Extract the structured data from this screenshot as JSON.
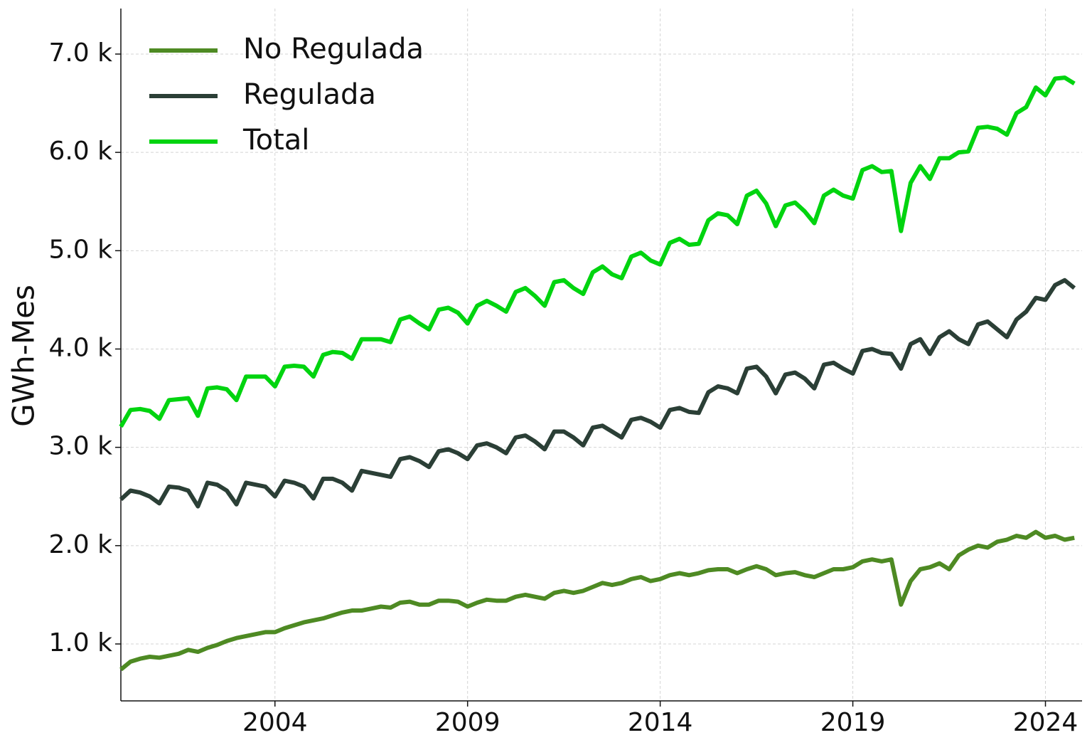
{
  "chart_data": {
    "type": "line",
    "y_label": "GWh-Mes",
    "x": [
      2000,
      2000.25,
      2000.5,
      2000.75,
      2001,
      2001.25,
      2001.5,
      2001.75,
      2002,
      2002.25,
      2002.5,
      2002.75,
      2003,
      2003.25,
      2003.5,
      2003.75,
      2004,
      2004.25,
      2004.5,
      2004.75,
      2005,
      2005.25,
      2005.5,
      2005.75,
      2006,
      2006.25,
      2006.5,
      2006.75,
      2007,
      2007.25,
      2007.5,
      2007.75,
      2008,
      2008.25,
      2008.5,
      2008.75,
      2009,
      2009.25,
      2009.5,
      2009.75,
      2010,
      2010.25,
      2010.5,
      2010.75,
      2011,
      2011.25,
      2011.5,
      2011.75,
      2012,
      2012.25,
      2012.5,
      2012.75,
      2013,
      2013.25,
      2013.5,
      2013.75,
      2014,
      2014.25,
      2014.5,
      2014.75,
      2015,
      2015.25,
      2015.5,
      2015.75,
      2016,
      2016.25,
      2016.5,
      2016.75,
      2017,
      2017.25,
      2017.5,
      2017.75,
      2018,
      2018.25,
      2018.5,
      2018.75,
      2019,
      2019.25,
      2019.5,
      2019.75,
      2020,
      2020.25,
      2020.5,
      2020.75,
      2021,
      2021.25,
      2021.5,
      2021.75,
      2022,
      2022.25,
      2022.5,
      2022.75,
      2023,
      2023.25,
      2023.5,
      2023.75,
      2024,
      2024.25,
      2024.5,
      2024.75
    ],
    "series": [
      {
        "name": "No Regulada",
        "color": "#4e8a23",
        "values": [
          740,
          820,
          850,
          870,
          860,
          880,
          900,
          940,
          920,
          960,
          990,
          1030,
          1060,
          1080,
          1100,
          1120,
          1120,
          1160,
          1190,
          1220,
          1240,
          1260,
          1290,
          1320,
          1340,
          1340,
          1360,
          1380,
          1370,
          1420,
          1430,
          1400,
          1400,
          1440,
          1440,
          1430,
          1380,
          1420,
          1450,
          1440,
          1440,
          1480,
          1500,
          1480,
          1460,
          1520,
          1540,
          1520,
          1540,
          1580,
          1620,
          1600,
          1620,
          1660,
          1680,
          1640,
          1660,
          1700,
          1720,
          1700,
          1720,
          1750,
          1760,
          1760,
          1720,
          1760,
          1790,
          1760,
          1700,
          1720,
          1730,
          1700,
          1680,
          1720,
          1760,
          1760,
          1780,
          1840,
          1860,
          1840,
          1860,
          1400,
          1640,
          1760,
          1780,
          1820,
          1760,
          1900,
          1960,
          2000,
          1980,
          2040,
          2060,
          2100,
          2080,
          2140,
          2080,
          2100,
          2060,
          2080
        ]
      },
      {
        "name": "Regulada",
        "color": "#2b3f36",
        "values": [
          2470,
          2560,
          2540,
          2500,
          2430,
          2600,
          2590,
          2560,
          2400,
          2640,
          2620,
          2560,
          2420,
          2640,
          2620,
          2600,
          2500,
          2660,
          2640,
          2600,
          2480,
          2680,
          2680,
          2640,
          2560,
          2760,
          2740,
          2720,
          2700,
          2880,
          2900,
          2860,
          2800,
          2960,
          2980,
          2940,
          2880,
          3020,
          3040,
          3000,
          2940,
          3100,
          3120,
          3060,
          2980,
          3160,
          3160,
          3100,
          3020,
          3200,
          3220,
          3160,
          3100,
          3280,
          3300,
          3260,
          3200,
          3380,
          3400,
          3360,
          3350,
          3560,
          3620,
          3600,
          3550,
          3800,
          3820,
          3720,
          3550,
          3740,
          3760,
          3700,
          3600,
          3840,
          3860,
          3800,
          3750,
          3980,
          4000,
          3960,
          3950,
          3800,
          4050,
          4100,
          3950,
          4120,
          4180,
          4100,
          4050,
          4250,
          4280,
          4200,
          4120,
          4300,
          4380,
          4520,
          4500,
          4650,
          4700,
          4620
        ]
      },
      {
        "name": "Total",
        "color": "#00d40f",
        "values": [
          3210,
          3380,
          3390,
          3370,
          3290,
          3480,
          3490,
          3500,
          3320,
          3600,
          3610,
          3590,
          3480,
          3720,
          3720,
          3720,
          3620,
          3820,
          3830,
          3820,
          3720,
          3940,
          3970,
          3960,
          3900,
          4100,
          4100,
          4100,
          4070,
          4300,
          4330,
          4260,
          4200,
          4400,
          4420,
          4370,
          4260,
          4440,
          4490,
          4440,
          4380,
          4580,
          4620,
          4540,
          4440,
          4680,
          4700,
          4620,
          4560,
          4780,
          4840,
          4760,
          4720,
          4940,
          4980,
          4900,
          4860,
          5080,
          5120,
          5060,
          5070,
          5310,
          5380,
          5360,
          5270,
          5560,
          5610,
          5480,
          5250,
          5460,
          5490,
          5400,
          5280,
          5560,
          5620,
          5560,
          5530,
          5820,
          5860,
          5800,
          5810,
          5200,
          5690,
          5860,
          5730,
          5940,
          5940,
          6000,
          6010,
          6250,
          6260,
          6240,
          6180,
          6400,
          6460,
          6660,
          6580,
          6750,
          6760,
          6700
        ]
      }
    ],
    "xlim": [
      2000,
      2024.95
    ],
    "xticks": [
      2004,
      2009,
      2014,
      2019,
      2024
    ],
    "ylim": [
      421,
      7463
    ],
    "yticks": [
      {
        "value": 1000,
        "label": "1.0 k"
      },
      {
        "value": 2000,
        "label": "2.0 k"
      },
      {
        "value": 3000,
        "label": "3.0 k"
      },
      {
        "value": 4000,
        "label": "4.0 k"
      },
      {
        "value": 5000,
        "label": "5.0 k"
      },
      {
        "value": 6000,
        "label": "6.0 k"
      },
      {
        "value": 7000,
        "label": "7.0 k"
      }
    ],
    "grid": true,
    "legend": "upper left"
  }
}
